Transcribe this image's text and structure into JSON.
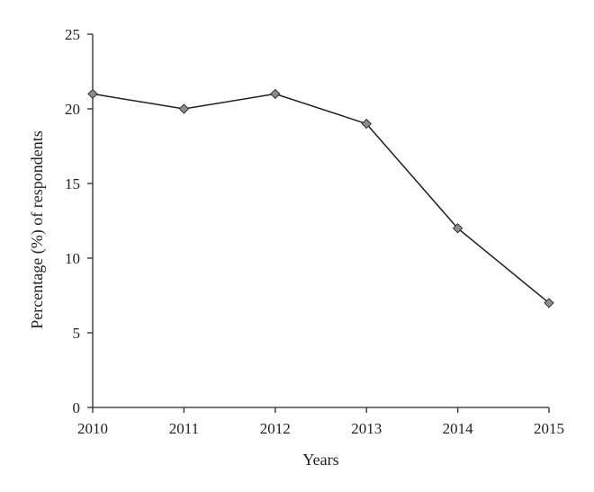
{
  "chart_data": {
    "type": "line",
    "title": "",
    "xlabel": "Years",
    "ylabel": "Percentage (%) of respondents",
    "x": [
      "2010",
      "2011",
      "2012",
      "2013",
      "2014",
      "2015"
    ],
    "ylim": [
      0,
      25
    ],
    "yticks": [
      "0",
      "5",
      "10",
      "15",
      "20",
      "25"
    ],
    "grid": false,
    "legend": "none",
    "series": [
      {
        "values": [
          21,
          20,
          21,
          19,
          12,
          7
        ],
        "line_color": "#1f1f1f",
        "marker": "diamond",
        "marker_color": "#8c8c8c"
      }
    ]
  }
}
